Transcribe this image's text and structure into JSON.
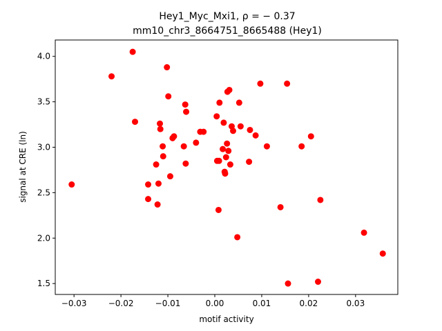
{
  "chart_data": {
    "type": "scatter",
    "title_line1": "Hey1_Myc_Mxi1, ρ = − 0.37",
    "title_line2": "mm10_chr3_8664751_8665488 (Hey1)",
    "xlabel": "motif activity",
    "ylabel": "signal at CRE (ln)",
    "xlim": [
      -0.034,
      0.039
    ],
    "ylim": [
      1.38,
      4.18
    ],
    "xticks": [
      -0.03,
      -0.02,
      -0.01,
      0.0,
      0.01,
      0.02,
      0.03
    ],
    "xtick_labels": [
      "−0.03",
      "−0.02",
      "−0.01",
      "0.00",
      "0.01",
      "0.02",
      "0.03"
    ],
    "yticks": [
      1.5,
      2.0,
      2.5,
      3.0,
      3.5,
      4.0
    ],
    "ytick_labels": [
      "1.5",
      "2.0",
      "2.5",
      "3.0",
      "3.5",
      "4.0"
    ],
    "grid": false,
    "marker_color": "#ff0000",
    "points": [
      {
        "x": -0.0305,
        "y": 2.59
      },
      {
        "x": -0.022,
        "y": 3.78
      },
      {
        "x": -0.0175,
        "y": 4.05
      },
      {
        "x": -0.017,
        "y": 3.28
      },
      {
        "x": -0.0142,
        "y": 2.59
      },
      {
        "x": -0.0142,
        "y": 2.43
      },
      {
        "x": -0.0125,
        "y": 2.81
      },
      {
        "x": -0.0122,
        "y": 2.37
      },
      {
        "x": -0.012,
        "y": 2.6
      },
      {
        "x": -0.0117,
        "y": 3.26
      },
      {
        "x": -0.0116,
        "y": 3.2
      },
      {
        "x": -0.0111,
        "y": 3.01
      },
      {
        "x": -0.011,
        "y": 2.9
      },
      {
        "x": -0.0102,
        "y": 3.88
      },
      {
        "x": -0.0099,
        "y": 3.56
      },
      {
        "x": -0.0095,
        "y": 2.68
      },
      {
        "x": -0.009,
        "y": 3.1
      },
      {
        "x": -0.0087,
        "y": 3.12
      },
      {
        "x": -0.0066,
        "y": 3.01
      },
      {
        "x": -0.0063,
        "y": 3.47
      },
      {
        "x": -0.0062,
        "y": 2.82
      },
      {
        "x": -0.0061,
        "y": 3.39
      },
      {
        "x": -0.004,
        "y": 3.05
      },
      {
        "x": -0.0031,
        "y": 3.17
      },
      {
        "x": -0.0024,
        "y": 3.17
      },
      {
        "x": 0.0004,
        "y": 3.34
      },
      {
        "x": 0.0005,
        "y": 2.85
      },
      {
        "x": 0.0008,
        "y": 2.31
      },
      {
        "x": 0.0009,
        "y": 2.85
      },
      {
        "x": 0.001,
        "y": 3.49
      },
      {
        "x": 0.0017,
        "y": 2.98
      },
      {
        "x": 0.0019,
        "y": 3.27
      },
      {
        "x": 0.0021,
        "y": 2.73
      },
      {
        "x": 0.0022,
        "y": 2.71
      },
      {
        "x": 0.0024,
        "y": 2.89
      },
      {
        "x": 0.0026,
        "y": 3.04
      },
      {
        "x": 0.0027,
        "y": 3.61
      },
      {
        "x": 0.0029,
        "y": 2.96
      },
      {
        "x": 0.0031,
        "y": 3.63
      },
      {
        "x": 0.0033,
        "y": 2.81
      },
      {
        "x": 0.0036,
        "y": 3.23
      },
      {
        "x": 0.0039,
        "y": 3.18
      },
      {
        "x": 0.0048,
        "y": 2.01
      },
      {
        "x": 0.0052,
        "y": 3.49
      },
      {
        "x": 0.0055,
        "y": 3.23
      },
      {
        "x": 0.0073,
        "y": 2.84
      },
      {
        "x": 0.0075,
        "y": 3.19
      },
      {
        "x": 0.0087,
        "y": 3.13
      },
      {
        "x": 0.0097,
        "y": 3.7
      },
      {
        "x": 0.0111,
        "y": 3.01
      },
      {
        "x": 0.014,
        "y": 2.34
      },
      {
        "x": 0.0154,
        "y": 3.7
      },
      {
        "x": 0.0156,
        "y": 1.5
      },
      {
        "x": 0.0185,
        "y": 3.01
      },
      {
        "x": 0.0205,
        "y": 3.12
      },
      {
        "x": 0.022,
        "y": 1.52
      },
      {
        "x": 0.0225,
        "y": 2.42
      },
      {
        "x": 0.0318,
        "y": 2.06
      },
      {
        "x": 0.0358,
        "y": 1.83
      }
    ]
  }
}
